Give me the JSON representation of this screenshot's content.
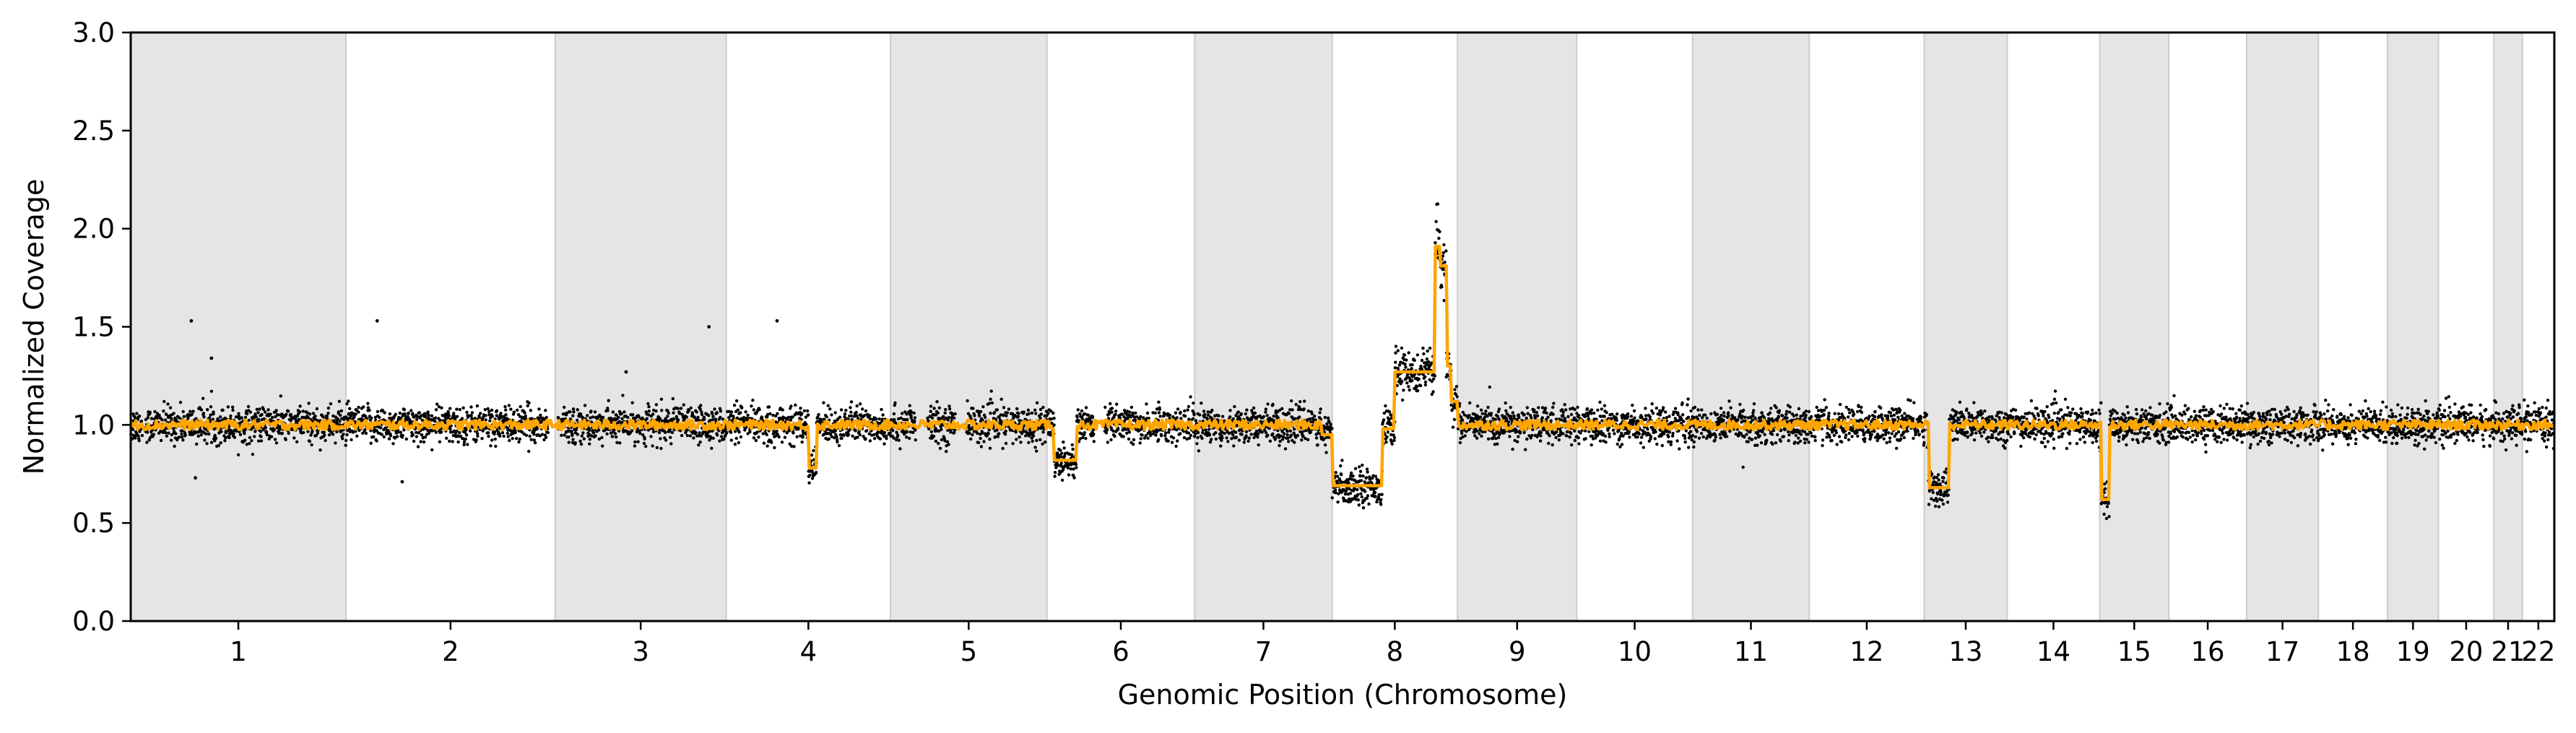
{
  "chart_data": {
    "type": "scatter",
    "xlabel": "Genomic Position (Chromosome)",
    "ylabel": "Normalized Coverage",
    "ylim": [
      0,
      3
    ],
    "yticks": [
      "0.0",
      "0.5",
      "1.0",
      "1.5",
      "2.0",
      "2.5",
      "3.0"
    ],
    "grid": false,
    "legend": "none",
    "shaded_alternate_chromosomes": true,
    "chromosomes": [
      {
        "label": "1",
        "length": 249
      },
      {
        "label": "2",
        "length": 242
      },
      {
        "label": "3",
        "length": 198
      },
      {
        "label": "4",
        "length": 190
      },
      {
        "label": "5",
        "length": 181
      },
      {
        "label": "6",
        "length": 171
      },
      {
        "label": "7",
        "length": 159
      },
      {
        "label": "8",
        "length": 145
      },
      {
        "label": "9",
        "length": 138
      },
      {
        "label": "10",
        "length": 134
      },
      {
        "label": "11",
        "length": 135
      },
      {
        "label": "12",
        "length": 133
      },
      {
        "label": "13",
        "length": 96
      },
      {
        "label": "14",
        "length": 107
      },
      {
        "label": "15",
        "length": 80
      },
      {
        "label": "16",
        "length": 90
      },
      {
        "label": "17",
        "length": 83
      },
      {
        "label": "18",
        "length": 80
      },
      {
        "label": "19",
        "length": 59
      },
      {
        "label": "20",
        "length": 64
      },
      {
        "label": "21",
        "length": 33
      },
      {
        "label": "22",
        "length": 37
      }
    ],
    "series": [
      {
        "kind": "scatter",
        "color": "#000000",
        "baseline": 1.0,
        "gaps": [
          [
            0.49,
            0.59
          ],
          [
            17.23,
            17.63
          ],
          [
            32.4,
            32.87
          ],
          [
            34.03,
            34.46
          ],
          [
            39.75,
            40.19
          ]
        ]
      },
      {
        "kind": "step-line",
        "color": "#FFA500",
        "segments": [
          {
            "chr": "4",
            "from": 0.5,
            "to": 0.55,
            "value": 0.78
          },
          {
            "chr": "6",
            "from": 0.05,
            "to": 0.2,
            "value": 0.82
          },
          {
            "chr": "7",
            "from": 0.92,
            "to": 1.0,
            "value": 0.95
          },
          {
            "chr": "8",
            "from": 0.0,
            "to": 0.4,
            "value": 0.69
          },
          {
            "chr": "8",
            "from": 0.4,
            "to": 0.5,
            "value": 0.98
          },
          {
            "chr": "8",
            "from": 0.5,
            "to": 0.82,
            "value": 1.27
          },
          {
            "chr": "8",
            "from": 0.82,
            "to": 0.86,
            "value": 1.91
          },
          {
            "chr": "8",
            "from": 0.86,
            "to": 0.91,
            "value": 1.81
          },
          {
            "chr": "8",
            "from": 0.91,
            "to": 0.95,
            "value": 1.3
          },
          {
            "chr": "8",
            "from": 0.95,
            "to": 1.0,
            "value": 1.12
          },
          {
            "chr": "13",
            "from": 0.05,
            "to": 0.3,
            "value": 0.68
          },
          {
            "chr": "15",
            "from": 0.02,
            "to": 0.14,
            "value": 0.62
          }
        ]
      }
    ],
    "outliers": [
      {
        "x": 2.5,
        "y": 1.53
      },
      {
        "x": 2.67,
        "y": 0.73
      },
      {
        "x": 3.33,
        "y": 1.34
      },
      {
        "x": 10.17,
        "y": 1.53
      },
      {
        "x": 11.2,
        "y": 0.71
      },
      {
        "x": 20.44,
        "y": 1.27
      },
      {
        "x": 23.86,
        "y": 1.5
      },
      {
        "x": 26.67,
        "y": 1.53
      }
    ]
  }
}
